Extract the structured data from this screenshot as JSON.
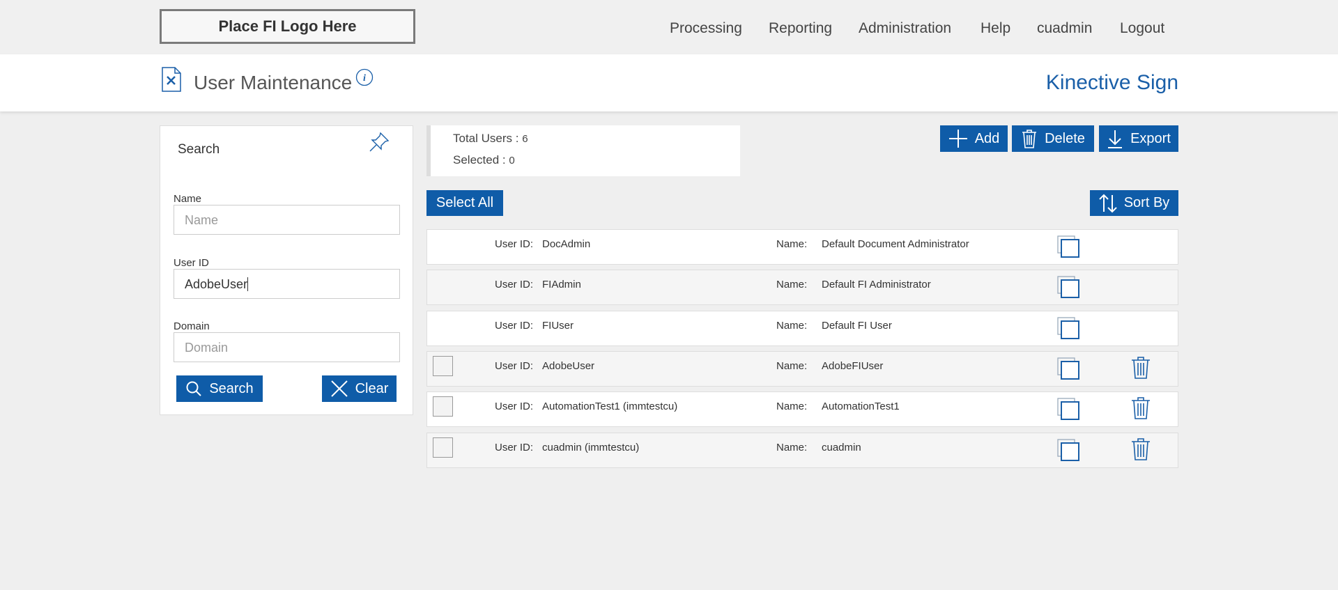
{
  "header": {
    "logo": "Place FI Logo Here",
    "nav": [
      "Processing",
      "Reporting",
      "Administration",
      "Help",
      "cuadmin",
      "Logout"
    ],
    "page_title": "User Maintenance",
    "brand": "Kinective Sign"
  },
  "search": {
    "title": "Search",
    "fields": [
      {
        "label": "Name",
        "placeholder": "Name"
      },
      {
        "label": "User ID",
        "value": "AdobeUser"
      },
      {
        "label": "Domain",
        "placeholder": "Domain"
      }
    ],
    "search_button": "Search",
    "clear_button": "Clear"
  },
  "summary": {
    "total_label": "Total Users :",
    "total": 6,
    "selected_label": "Selected :",
    "selected": 0
  },
  "actions": {
    "add": "Add",
    "delete": "Delete",
    "export": "Export",
    "select_all": "Select All",
    "sort_by": "Sort By"
  },
  "users": {
    "user_id_label": "User ID:",
    "name_label": "Name:",
    "rows": [
      {
        "user_id": "DocAdmin",
        "name": "Default Document Administrator",
        "selectable": false
      },
      {
        "user_id": "FIAdmin",
        "name": "Default FI Administrator",
        "selectable": false
      },
      {
        "user_id": "FIUser",
        "name": "Default FI User",
        "selectable": false
      },
      {
        "user_id": "AdobeUser",
        "name": "AdobeFIUser",
        "selectable": true
      },
      {
        "user_id": "AutomationTest1 (immtestcu)",
        "name": "AutomationTest1",
        "selectable": true
      },
      {
        "user_id": "cuadmin (immtestcu)",
        "name": "cuadmin",
        "selectable": true
      }
    ]
  }
}
